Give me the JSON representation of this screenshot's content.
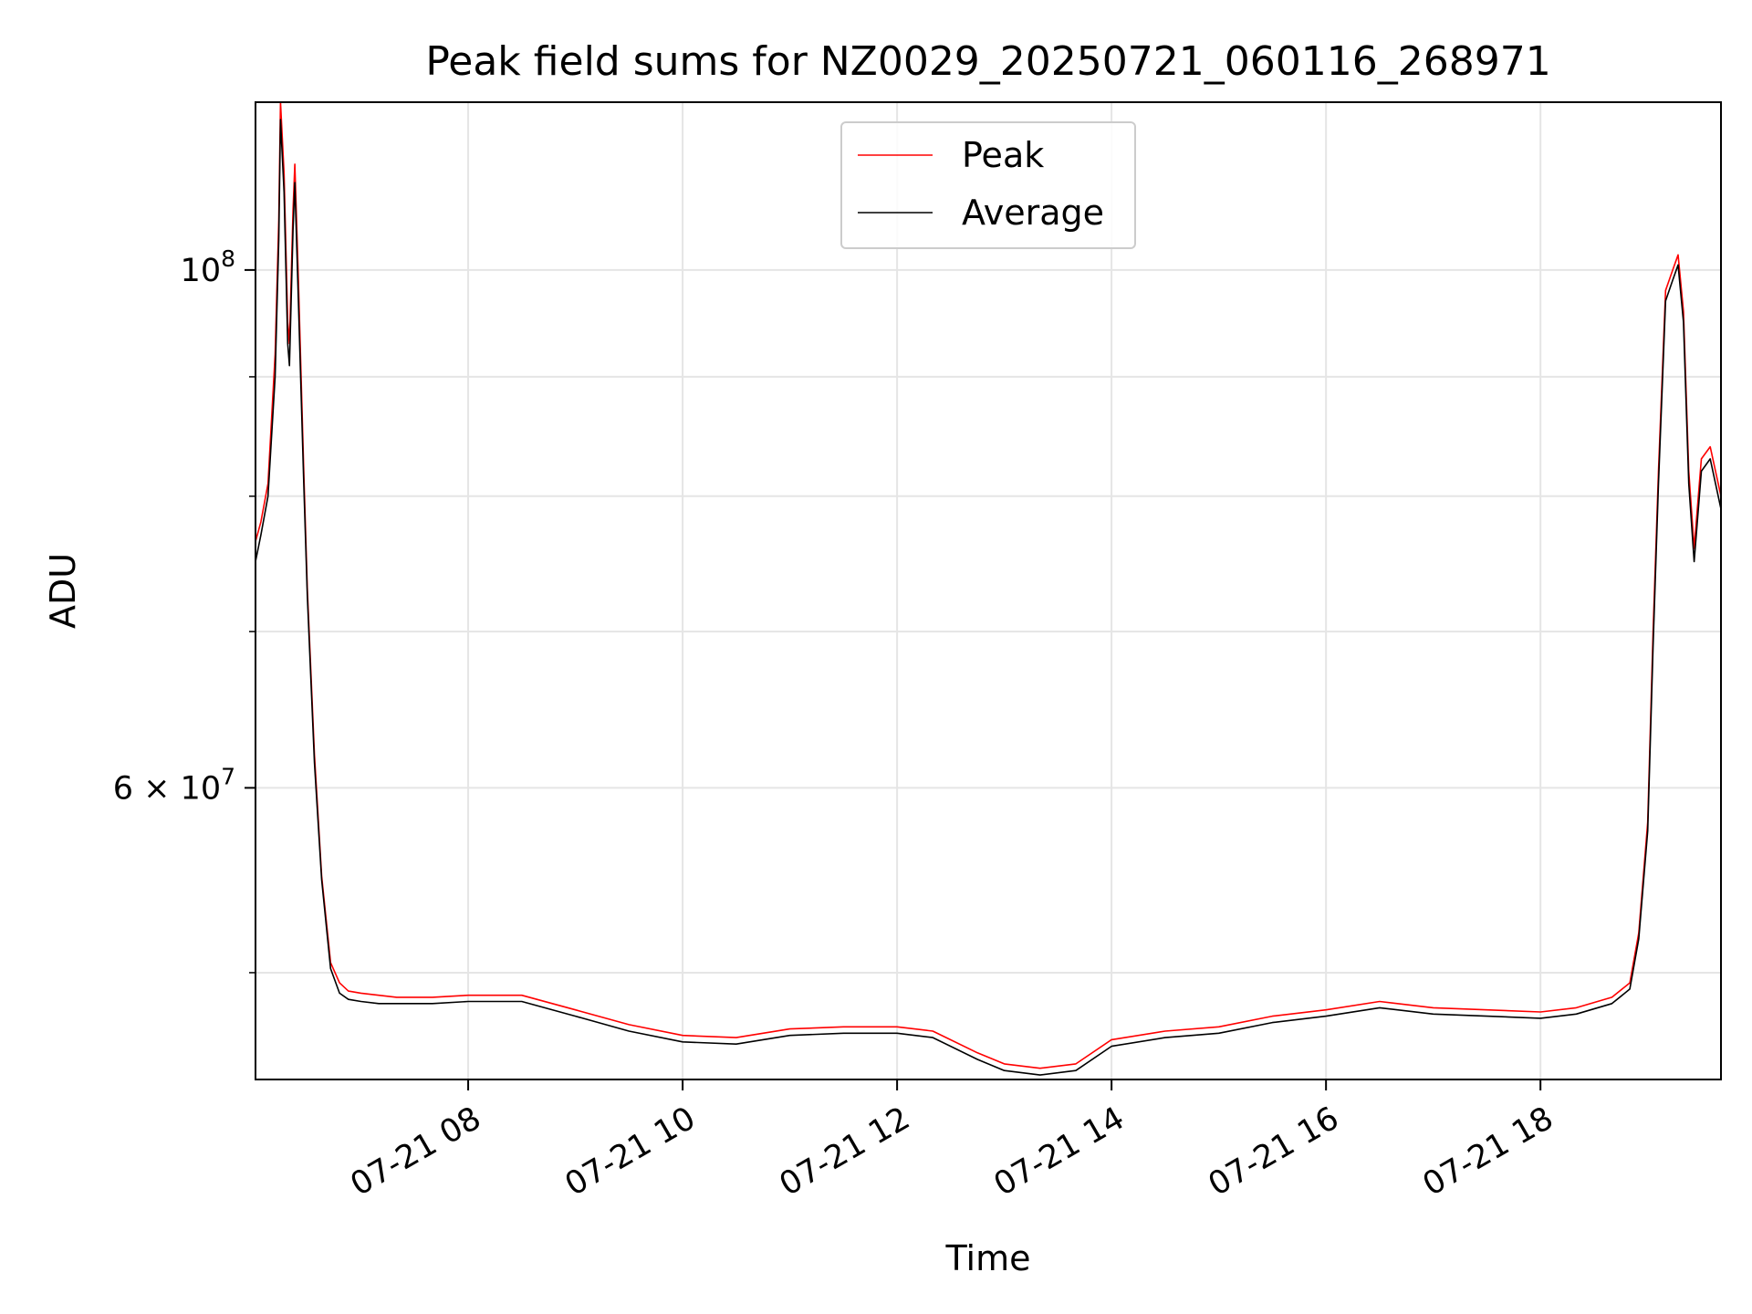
{
  "chart_data": {
    "type": "line",
    "title": "Peak field sums for NZ0029_20250721_060116_268971",
    "xlabel": "Time",
    "ylabel": "ADU",
    "y_scale": "log",
    "ylim": [
      45000000,
      118000000
    ],
    "xlim": [
      "2025-07-21 06:01",
      "2025-07-21 19:41"
    ],
    "grid": true,
    "legend_position": "top-center",
    "x_tick_labels": [
      {
        "x": "2025-07-21 08:00",
        "label": "07-21 08"
      },
      {
        "x": "2025-07-21 10:00",
        "label": "07-21 10"
      },
      {
        "x": "2025-07-21 12:00",
        "label": "07-21 12"
      },
      {
        "x": "2025-07-21 14:00",
        "label": "07-21 14"
      },
      {
        "x": "2025-07-21 16:00",
        "label": "07-21 16"
      },
      {
        "x": "2025-07-21 18:00",
        "label": "07-21 18"
      }
    ],
    "y_tick_labels": [
      {
        "value": 100000000,
        "mantissa": "",
        "base": "10",
        "exp": "8"
      },
      {
        "value": 60000000,
        "mantissa": "6",
        "base": "10",
        "exp": "7"
      }
    ],
    "y_minor_ticks": [
      50000000,
      70000000,
      80000000,
      90000000
    ],
    "series": [
      {
        "name": "Peak",
        "color": "#ff0000",
        "x": [
          "2025-07-21 06:01",
          "2025-07-21 06:04",
          "2025-07-21 06:08",
          "2025-07-21 06:12",
          "2025-07-21 06:14",
          "2025-07-21 06:15",
          "2025-07-21 06:17",
          "2025-07-21 06:19",
          "2025-07-21 06:20",
          "2025-07-21 06:22",
          "2025-07-21 06:23",
          "2025-07-21 06:25",
          "2025-07-21 06:28",
          "2025-07-21 06:30",
          "2025-07-21 06:34",
          "2025-07-21 06:38",
          "2025-07-21 06:43",
          "2025-07-21 06:48",
          "2025-07-21 06:53",
          "2025-07-21 07:00",
          "2025-07-21 07:10",
          "2025-07-21 07:20",
          "2025-07-21 07:40",
          "2025-07-21 08:00",
          "2025-07-21 08:30",
          "2025-07-21 09:00",
          "2025-07-21 09:30",
          "2025-07-21 10:00",
          "2025-07-21 10:30",
          "2025-07-21 11:00",
          "2025-07-21 11:30",
          "2025-07-21 12:00",
          "2025-07-21 12:20",
          "2025-07-21 12:45",
          "2025-07-21 13:00",
          "2025-07-21 13:20",
          "2025-07-21 13:40",
          "2025-07-21 14:00",
          "2025-07-21 14:30",
          "2025-07-21 15:00",
          "2025-07-21 15:30",
          "2025-07-21 16:00",
          "2025-07-21 16:30",
          "2025-07-21 17:00",
          "2025-07-21 17:30",
          "2025-07-21 18:00",
          "2025-07-21 18:20",
          "2025-07-21 18:40",
          "2025-07-21 18:50",
          "2025-07-21 18:55",
          "2025-07-21 19:00",
          "2025-07-21 19:03",
          "2025-07-21 19:06",
          "2025-07-21 19:10",
          "2025-07-21 19:14",
          "2025-07-21 19:17",
          "2025-07-21 19:20",
          "2025-07-21 19:23",
          "2025-07-21 19:26",
          "2025-07-21 19:30",
          "2025-07-21 19:35",
          "2025-07-21 19:41"
        ],
        "values": [
          76500000,
          78000000,
          81000000,
          92000000,
          105000000,
          118000000,
          110000000,
          95000000,
          93000000,
          106000000,
          111000000,
          99000000,
          82000000,
          73000000,
          62000000,
          55000000,
          50500000,
          49500000,
          49100000,
          49000000,
          48900000,
          48800000,
          48800000,
          48900000,
          48900000,
          48200000,
          47500000,
          47000000,
          46900000,
          47300000,
          47400000,
          47400000,
          47200000,
          46200000,
          45700000,
          45500000,
          45700000,
          46800000,
          47200000,
          47400000,
          47900000,
          48200000,
          48600000,
          48300000,
          48200000,
          48100000,
          48300000,
          48800000,
          49500000,
          52000000,
          58000000,
          70000000,
          82000000,
          98000000,
          100000000,
          101500000,
          96000000,
          82000000,
          76000000,
          83000000,
          84000000,
          80000000
        ]
      },
      {
        "name": "Average",
        "color": "#000000",
        "x": [
          "2025-07-21 06:01",
          "2025-07-21 06:04",
          "2025-07-21 06:08",
          "2025-07-21 06:12",
          "2025-07-21 06:14",
          "2025-07-21 06:15",
          "2025-07-21 06:17",
          "2025-07-21 06:19",
          "2025-07-21 06:20",
          "2025-07-21 06:22",
          "2025-07-21 06:23",
          "2025-07-21 06:25",
          "2025-07-21 06:28",
          "2025-07-21 06:30",
          "2025-07-21 06:34",
          "2025-07-21 06:38",
          "2025-07-21 06:43",
          "2025-07-21 06:48",
          "2025-07-21 06:53",
          "2025-07-21 07:00",
          "2025-07-21 07:10",
          "2025-07-21 07:20",
          "2025-07-21 07:40",
          "2025-07-21 08:00",
          "2025-07-21 08:30",
          "2025-07-21 09:00",
          "2025-07-21 09:30",
          "2025-07-21 10:00",
          "2025-07-21 10:30",
          "2025-07-21 11:00",
          "2025-07-21 11:30",
          "2025-07-21 12:00",
          "2025-07-21 12:20",
          "2025-07-21 12:45",
          "2025-07-21 13:00",
          "2025-07-21 13:20",
          "2025-07-21 13:40",
          "2025-07-21 14:00",
          "2025-07-21 14:30",
          "2025-07-21 15:00",
          "2025-07-21 15:30",
          "2025-07-21 16:00",
          "2025-07-21 16:30",
          "2025-07-21 17:00",
          "2025-07-21 17:30",
          "2025-07-21 18:00",
          "2025-07-21 18:20",
          "2025-07-21 18:40",
          "2025-07-21 18:50",
          "2025-07-21 18:55",
          "2025-07-21 19:00",
          "2025-07-21 19:03",
          "2025-07-21 19:06",
          "2025-07-21 19:10",
          "2025-07-21 19:14",
          "2025-07-21 19:17",
          "2025-07-21 19:20",
          "2025-07-21 19:23",
          "2025-07-21 19:26",
          "2025-07-21 19:30",
          "2025-07-21 19:35",
          "2025-07-21 19:41"
        ],
        "values": [
          75000000,
          77000000,
          80000000,
          90000000,
          103000000,
          116000000,
          108000000,
          93000000,
          91000000,
          104000000,
          109000000,
          97000000,
          81000000,
          72500000,
          61500000,
          54800000,
          50200000,
          49000000,
          48700000,
          48600000,
          48500000,
          48500000,
          48500000,
          48600000,
          48600000,
          47900000,
          47200000,
          46700000,
          46600000,
          47000000,
          47100000,
          47100000,
          46900000,
          45900000,
          45400000,
          45200000,
          45400000,
          46500000,
          46900000,
          47100000,
          47600000,
          47900000,
          48300000,
          48000000,
          47900000,
          47800000,
          48000000,
          48500000,
          49200000,
          51700000,
          57500000,
          69000000,
          81000000,
          97000000,
          99000000,
          100500000,
          95000000,
          81000000,
          75000000,
          82000000,
          83000000,
          79000000
        ]
      }
    ]
  }
}
